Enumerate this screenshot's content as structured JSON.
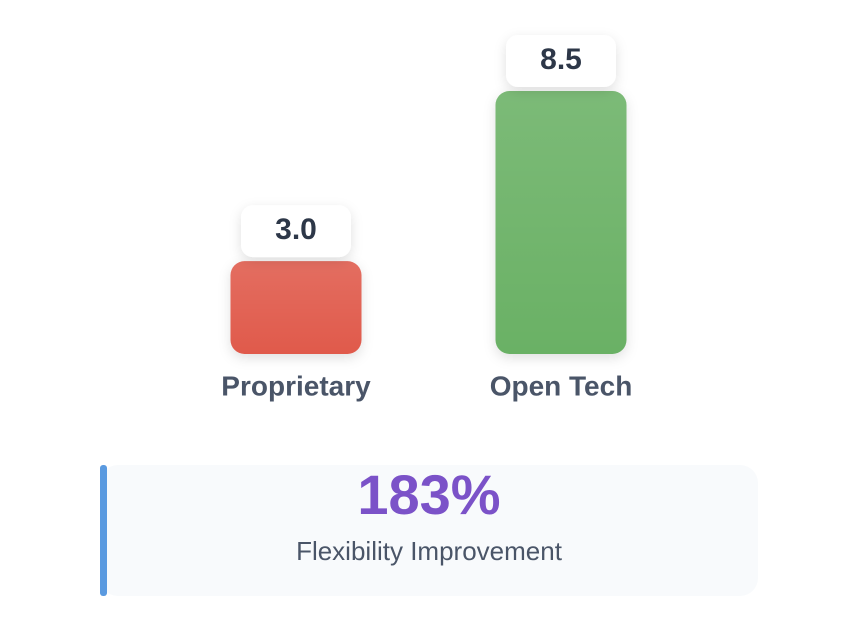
{
  "chart_data": {
    "type": "bar",
    "categories": [
      "Proprietary",
      "Open Tech"
    ],
    "values": [
      3.0,
      8.5
    ],
    "value_labels": [
      "3.0",
      "8.5"
    ],
    "colors": [
      "#e05a4c",
      "#6ab165"
    ]
  },
  "summary": {
    "value": "183%",
    "label": "Flexibility Improvement"
  }
}
